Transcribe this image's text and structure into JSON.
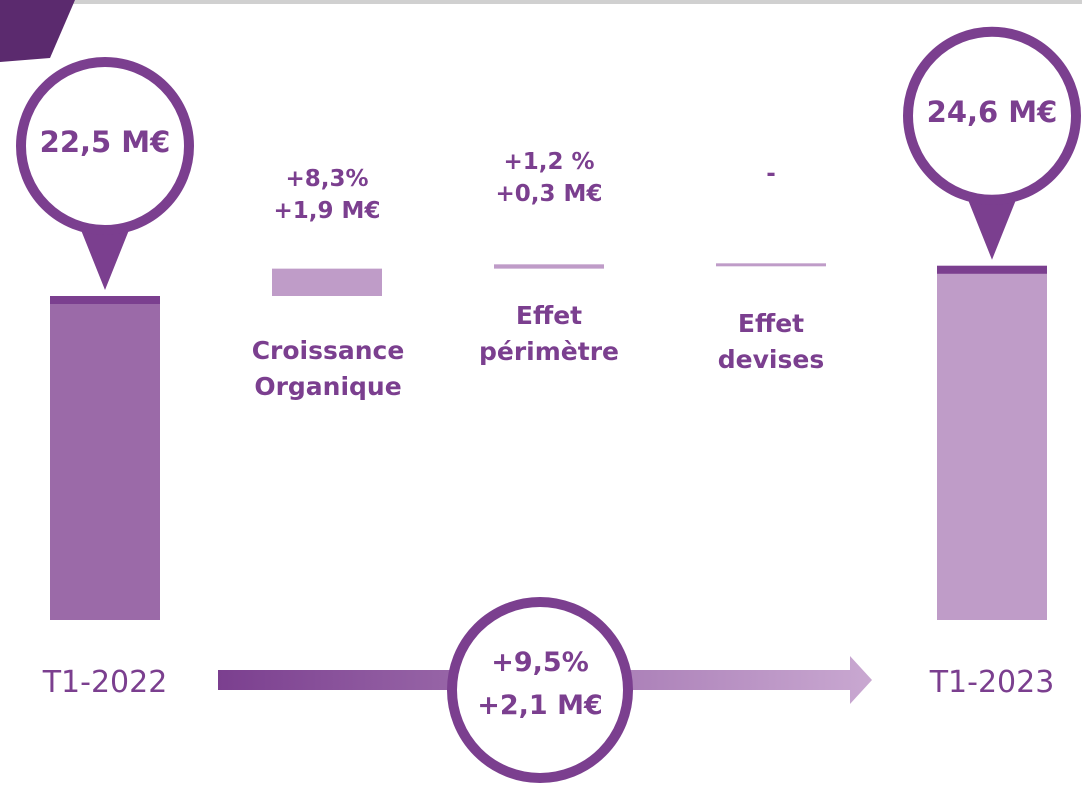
{
  "chart_data": {
    "type": "waterfall",
    "categories": [
      "T1-2022",
      "Croissance Organique",
      "Effet périmètre",
      "Effet devises",
      "T1-2023"
    ],
    "values": [
      22.5,
      1.9,
      0.3,
      null,
      24.6
    ],
    "value_labels": [
      "22,5 M€",
      "+1,9 M€",
      "+0,3 M€",
      "-",
      "24,6 M€"
    ],
    "percent_labels": [
      null,
      "+8,3%",
      "+1,2 %",
      null,
      null
    ],
    "total_change": {
      "percent": "+9,5%",
      "value": "+2,1 M€"
    },
    "colors": {
      "start": "#9b6aa8",
      "steps": "#bf9cc8",
      "end": "#bf9cc8",
      "accent": "#7b3f8f"
    }
  }
}
